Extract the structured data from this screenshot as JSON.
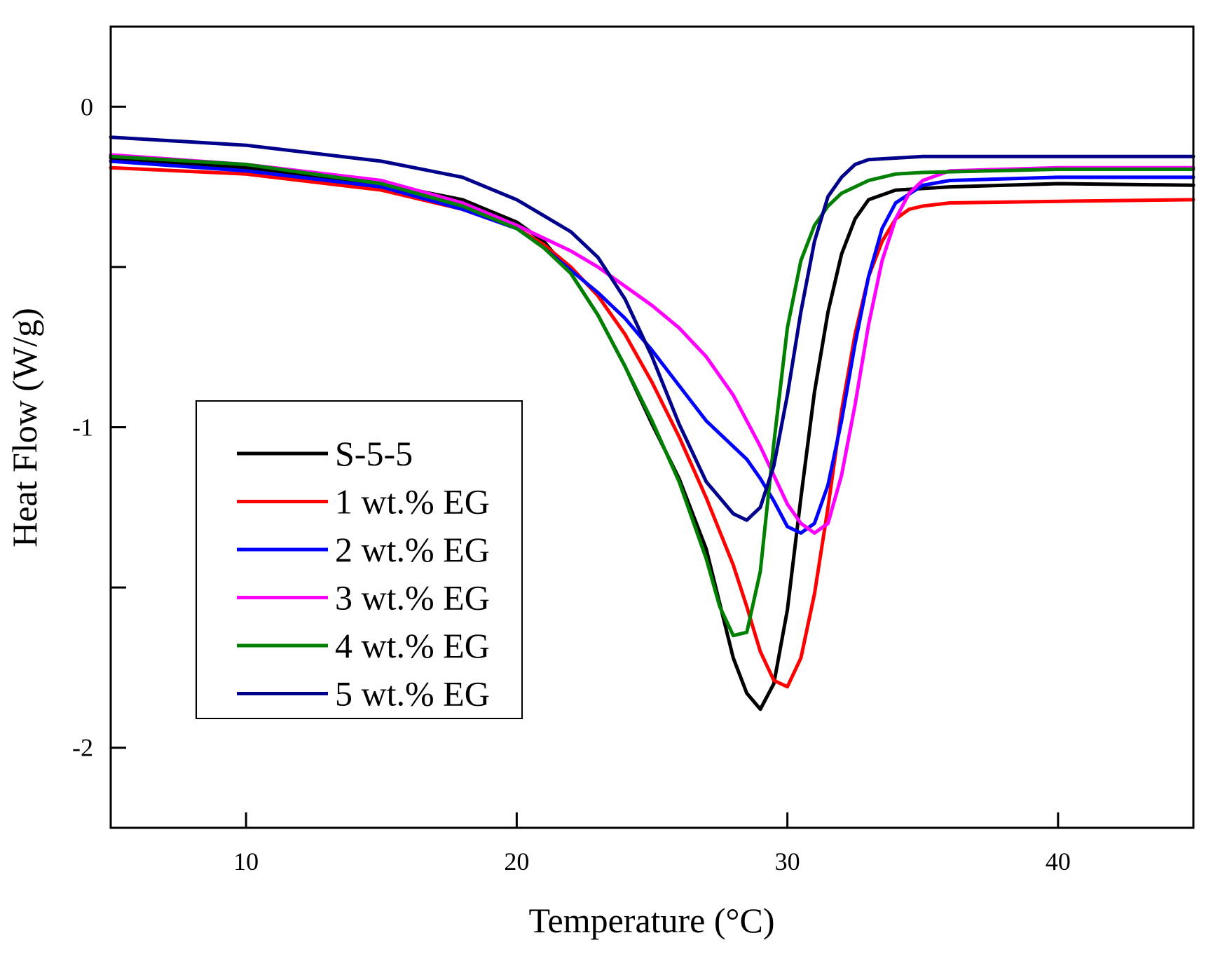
{
  "chart_data": {
    "type": "line",
    "title": "",
    "xlabel": "Temperature (°C)",
    "ylabel": "Heat Flow (W/g)",
    "xlim": [
      5,
      45
    ],
    "ylim": [
      -2.25,
      0.25
    ],
    "xticks": [
      10,
      20,
      30,
      40
    ],
    "xtick_labels": [
      "10",
      "20",
      "30",
      "40"
    ],
    "yticks": [
      0,
      -0.5,
      -1,
      -1.5,
      -2
    ],
    "ytick_labels": [
      "0",
      "",
      "-1",
      "",
      "-2"
    ],
    "grid": false,
    "legend": {
      "position": "lower-left"
    },
    "series": [
      {
        "name": "S-5-5",
        "color": "#000000",
        "x": [
          5,
          10,
          15,
          18,
          20,
          21,
          22,
          23,
          24,
          25,
          26,
          27,
          27.5,
          28,
          28.5,
          29,
          29.5,
          30,
          30.5,
          31,
          31.5,
          32,
          32.5,
          33,
          34,
          36,
          40,
          45
        ],
        "y": [
          -0.16,
          -0.19,
          -0.24,
          -0.29,
          -0.36,
          -0.42,
          -0.52,
          -0.65,
          -0.81,
          -0.99,
          -1.16,
          -1.38,
          -1.55,
          -1.72,
          -1.83,
          -1.88,
          -1.8,
          -1.57,
          -1.22,
          -0.89,
          -0.64,
          -0.46,
          -0.35,
          -0.29,
          -0.26,
          -0.25,
          -0.24,
          -0.245
        ]
      },
      {
        "name": "1 wt.% EG",
        "color": "#ff0000",
        "x": [
          5,
          10,
          15,
          18,
          20,
          21,
          22,
          23,
          24,
          25,
          26,
          27,
          28,
          28.5,
          29,
          29.5,
          30,
          30.5,
          31,
          31.5,
          32,
          32.5,
          33,
          33.5,
          34,
          34.5,
          35,
          36,
          40,
          45
        ],
        "y": [
          -0.19,
          -0.21,
          -0.26,
          -0.32,
          -0.38,
          -0.43,
          -0.5,
          -0.59,
          -0.71,
          -0.86,
          -1.03,
          -1.22,
          -1.43,
          -1.56,
          -1.7,
          -1.79,
          -1.81,
          -1.72,
          -1.52,
          -1.25,
          -0.95,
          -0.71,
          -0.53,
          -0.42,
          -0.35,
          -0.32,
          -0.31,
          -0.3,
          -0.295,
          -0.29
        ]
      },
      {
        "name": "2 wt.% EG",
        "color": "#0000ff",
        "x": [
          5,
          10,
          15,
          18,
          20,
          21,
          22,
          23,
          24,
          25,
          26,
          27,
          28,
          28.5,
          29,
          29.5,
          30,
          30.5,
          31,
          31.5,
          32,
          32.5,
          33,
          33.5,
          34,
          35,
          36,
          40,
          45
        ],
        "y": [
          -0.17,
          -0.2,
          -0.25,
          -0.32,
          -0.38,
          -0.44,
          -0.51,
          -0.58,
          -0.66,
          -0.76,
          -0.87,
          -0.98,
          -1.06,
          -1.1,
          -1.16,
          -1.23,
          -1.31,
          -1.33,
          -1.3,
          -1.18,
          -0.98,
          -0.74,
          -0.53,
          -0.38,
          -0.3,
          -0.245,
          -0.23,
          -0.22,
          -0.22
        ]
      },
      {
        "name": "3 wt.% EG",
        "color": "#ff00ff",
        "x": [
          5,
          10,
          15,
          18,
          20,
          21,
          22,
          23,
          24,
          25,
          26,
          27,
          28,
          29,
          29.5,
          30,
          30.5,
          31,
          31.5,
          32,
          32.5,
          33,
          33.5,
          34,
          34.5,
          35,
          36,
          40,
          45
        ],
        "y": [
          -0.15,
          -0.18,
          -0.23,
          -0.3,
          -0.37,
          -0.41,
          -0.45,
          -0.5,
          -0.56,
          -0.62,
          -0.69,
          -0.78,
          -0.9,
          -1.06,
          -1.15,
          -1.24,
          -1.3,
          -1.33,
          -1.3,
          -1.15,
          -0.93,
          -0.68,
          -0.48,
          -0.35,
          -0.27,
          -0.23,
          -0.2,
          -0.19,
          -0.19
        ]
      },
      {
        "name": "4 wt.% EG",
        "color": "#008000",
        "x": [
          5,
          10,
          15,
          18,
          20,
          21,
          22,
          23,
          24,
          25,
          26,
          27,
          27.5,
          28,
          28.5,
          29,
          29.5,
          30,
          30.5,
          31,
          31.5,
          32,
          33,
          34,
          35,
          40,
          45
        ],
        "y": [
          -0.155,
          -0.18,
          -0.24,
          -0.31,
          -0.38,
          -0.44,
          -0.52,
          -0.65,
          -0.81,
          -0.98,
          -1.17,
          -1.41,
          -1.56,
          -1.65,
          -1.64,
          -1.45,
          -1.05,
          -0.69,
          -0.48,
          -0.37,
          -0.31,
          -0.27,
          -0.23,
          -0.21,
          -0.205,
          -0.195,
          -0.195
        ]
      },
      {
        "name": "5 wt.% EG",
        "color": "#00008b",
        "x": [
          5,
          10,
          15,
          18,
          20,
          21,
          22,
          23,
          24,
          25,
          26,
          27,
          28,
          28.5,
          29,
          29.5,
          30,
          30.5,
          31,
          31.5,
          32,
          32.5,
          33,
          34,
          35,
          36,
          40,
          45
        ],
        "y": [
          -0.095,
          -0.12,
          -0.17,
          -0.22,
          -0.29,
          -0.34,
          -0.39,
          -0.47,
          -0.6,
          -0.78,
          -0.99,
          -1.17,
          -1.27,
          -1.29,
          -1.25,
          -1.12,
          -0.9,
          -0.64,
          -0.42,
          -0.28,
          -0.22,
          -0.18,
          -0.165,
          -0.16,
          -0.155,
          -0.155,
          -0.155,
          -0.155
        ]
      }
    ]
  }
}
